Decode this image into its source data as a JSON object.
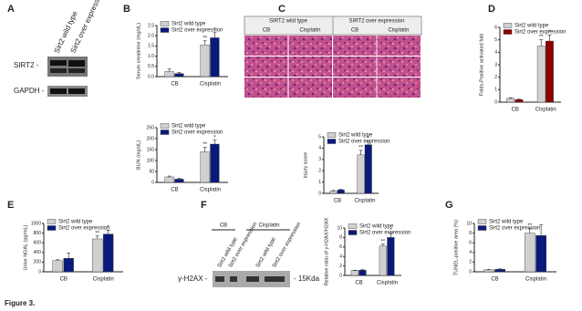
{
  "panels": [
    "A",
    "B",
    "C",
    "D",
    "E",
    "F",
    "G"
  ],
  "blots": {
    "a_lanes": [
      "Sirt2 wild type",
      "Sirt2 over expression"
    ],
    "a_rows": [
      "SIRT2 -",
      "GAPDH -"
    ],
    "c_groups": [
      "SIRT2 wild type",
      "SIRT2 over expression"
    ],
    "c_conditions": [
      "CB",
      "Cisplatin",
      "CB",
      "Cisplatin"
    ],
    "f_groups": [
      "CB",
      "Cisplatin"
    ],
    "f_lanes": [
      "Sirt2 wild type",
      "Sirt2 over expression",
      "Sirt2 wild type",
      "Sirt2 over expression"
    ],
    "f_row": "γ-H2AX -",
    "f_size": "- 15Kda"
  },
  "caption": "Figure 3.",
  "chart_data": [
    {
      "type": "bar",
      "ylabel": "Serum creatinine (mg/dL)",
      "categories": [
        "CB",
        "Cisplatin"
      ],
      "ylim": [
        0,
        2.5
      ],
      "yticks": [
        {
          "value": 0,
          "label": "0.0"
        },
        {
          "value": 0.5,
          "label": "0.5"
        },
        {
          "value": 1,
          "label": "1.0"
        },
        {
          "value": 1.5,
          "label": "1.5"
        },
        {
          "value": 2,
          "label": "2.0"
        },
        {
          "value": 2.5,
          "label": "2.5"
        }
      ],
      "series": [
        {
          "name": "Sirt2 wild type",
          "color": "#d0d0d0",
          "values": [
            0.25,
            1.55
          ],
          "errors": [
            0.12,
            0.2
          ],
          "marks": [
            null,
            "**"
          ]
        },
        {
          "name": "Sirt2 over expression",
          "color": "#0a1a7a",
          "values": [
            0.15,
            1.9
          ],
          "errors": [
            0.05,
            0.25
          ],
          "marks": [
            null,
            "*"
          ]
        }
      ]
    },
    {
      "type": "bar",
      "ylabel": "BUN (mg/dL)",
      "categories": [
        "CB",
        "Cisplatin"
      ],
      "ylim": [
        0,
        250
      ],
      "yticks": [
        0,
        50,
        100,
        150,
        200,
        250
      ],
      "series": [
        {
          "name": "Sirt2 wild type",
          "color": "#d0d0d0",
          "values": [
            25,
            140
          ],
          "errors": [
            4,
            20
          ],
          "marks": [
            null,
            "**"
          ]
        },
        {
          "name": "Sirt2 over expression",
          "color": "#0a1a7a",
          "values": [
            15,
            175
          ],
          "errors": [
            3,
            18
          ],
          "marks": [
            null,
            "*"
          ]
        }
      ]
    },
    {
      "type": "bar",
      "ylabel": "Folds-Positive activated fold",
      "categories": [
        "CB",
        "Cisplatin"
      ],
      "ylim": [
        0,
        6
      ],
      "yticks": [
        0,
        1,
        2,
        3,
        4,
        5,
        6
      ],
      "series": [
        {
          "name": "Sirt2 wild type",
          "color": "#d0d0d0",
          "values": [
            0.3,
            4.5
          ],
          "errors": [
            0.05,
            0.5
          ],
          "marks": [
            null,
            "**"
          ]
        },
        {
          "name": "Sirt2 over expression",
          "color": "#8b0000",
          "values": [
            0.2,
            4.9
          ],
          "errors": [
            0.05,
            0.5
          ],
          "marks": [
            null,
            "*"
          ]
        }
      ]
    },
    {
      "type": "bar",
      "ylabel": "Injury score",
      "categories": [
        "CB",
        "Cisplatin"
      ],
      "ylim": [
        0,
        5
      ],
      "yticks": [
        0,
        1,
        2,
        3,
        4,
        5
      ],
      "series": [
        {
          "name": "Sirt2 wild type",
          "color": "#d0d0d0",
          "values": [
            0.2,
            3.4
          ],
          "errors": [
            0.05,
            0.4
          ],
          "marks": [
            null,
            "**"
          ]
        },
        {
          "name": "Sirt2 over expression",
          "color": "#0a1a7a",
          "values": [
            0.3,
            4.3
          ],
          "errors": [
            0.05,
            0.3
          ],
          "marks": [
            null,
            "*"
          ]
        }
      ]
    },
    {
      "type": "bar",
      "ylabel": "Urine NGAL (pg/mL)",
      "categories": [
        "CB",
        "Cisplatin"
      ],
      "ylim": [
        0,
        1000
      ],
      "yticks": [
        0,
        200,
        400,
        600,
        800,
        1000
      ],
      "series": [
        {
          "name": "Sirt2 wild type",
          "color": "#d0d0d0",
          "values": [
            230,
            680
          ],
          "errors": [
            20,
            60
          ],
          "marks": [
            null,
            "**"
          ]
        },
        {
          "name": "Sirt2 over expression",
          "color": "#0a1a7a",
          "values": [
            280,
            780
          ],
          "errors": [
            110,
            80
          ],
          "marks": [
            null,
            "*"
          ]
        }
      ]
    },
    {
      "type": "bar",
      "ylabel": "Relative ratio of γ-H2AX/H2AX",
      "categories": [
        "CB",
        "Cisplatin"
      ],
      "ylim": [
        0,
        10
      ],
      "yticks": [
        0,
        2,
        4,
        6,
        8,
        10
      ],
      "series": [
        {
          "name": "Sirt2 wild type",
          "color": "#d0d0d0",
          "values": [
            1,
            6.2
          ],
          "errors": [
            0.1,
            0.4
          ],
          "marks": [
            null,
            "**"
          ]
        },
        {
          "name": "Sirt2 over expression",
          "color": "#0a1a7a",
          "values": [
            1.1,
            8
          ],
          "errors": [
            0.1,
            1
          ],
          "marks": [
            null,
            "*"
          ]
        }
      ]
    },
    {
      "type": "bar",
      "ylabel": "TUNEL-positive area (%)",
      "categories": [
        "CB",
        "Cisplatin"
      ],
      "ylim": [
        0,
        10
      ],
      "yticks": [
        0,
        2,
        4,
        6,
        8,
        10
      ],
      "series": [
        {
          "name": "Sirt2 wild type",
          "color": "#d0d0d0",
          "values": [
            0.4,
            8
          ],
          "errors": [
            0.1,
            1
          ],
          "marks": [
            null,
            "**"
          ]
        },
        {
          "name": "Sirt2 over expression",
          "color": "#0a1a7a",
          "values": [
            0.5,
            7.5
          ],
          "errors": [
            0.1,
            2.2
          ],
          "marks": [
            null,
            null
          ]
        }
      ]
    }
  ]
}
